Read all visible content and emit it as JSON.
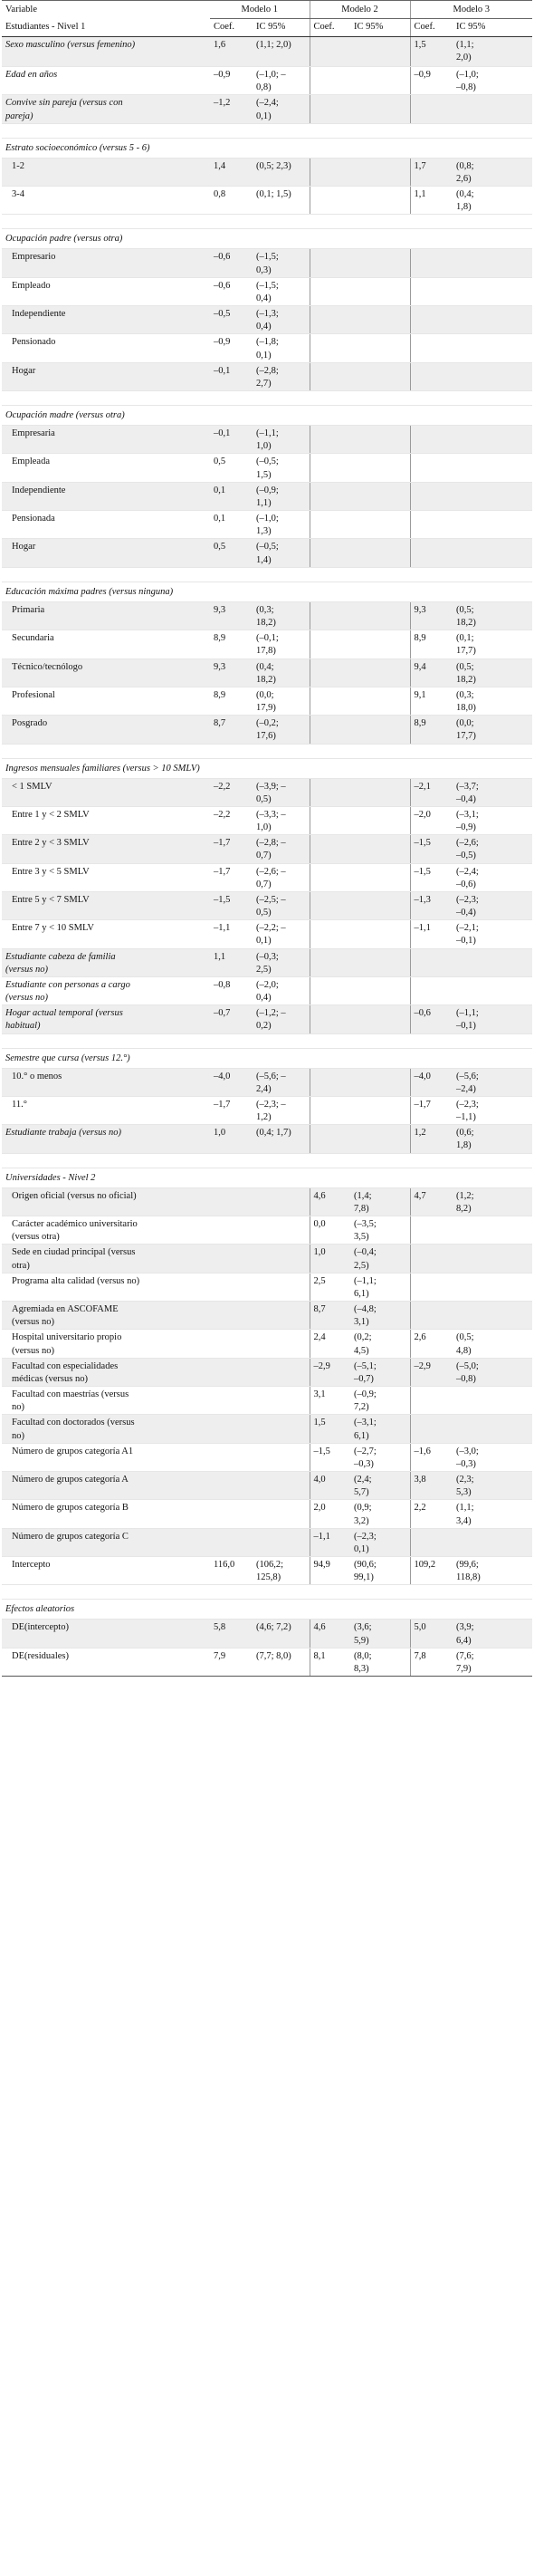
{
  "header": {
    "variable": "Variable",
    "level": "Estudiantes - Nivel 1",
    "models": [
      "Modelo 1",
      "Modelo 2",
      "Modelo 3"
    ],
    "coef": "Coef.",
    "ic": "IC 95%"
  },
  "rows": [
    {
      "t": "r",
      "label": "Sexo masculino (versus femenino)",
      "it": true,
      "h": 33,
      "b": true,
      "v": [
        "1,6",
        "(1,1; 2,0)",
        "",
        "",
        "1,5",
        "(1,1;\n2,0)"
      ]
    },
    {
      "t": "r",
      "label": "Edad en años",
      "it": true,
      "h": 28,
      "b": false,
      "v": [
        "–0,9",
        "(–1,0; –\n0,8)",
        "",
        "",
        "–0,9",
        "(–1,0;\n–0,8)"
      ]
    },
    {
      "t": "r",
      "label": "Convive sin pareja (versus con\npareja)",
      "it": true,
      "h": 30,
      "b": true,
      "v": [
        "–1,2",
        "(–2,4;\n0,1)",
        "",
        "",
        "",
        ""
      ]
    },
    {
      "t": "s"
    },
    {
      "t": "g",
      "label": "Estrato socioeconómico (versus 5 - 6)",
      "h": 22
    },
    {
      "t": "r",
      "label": "1-2",
      "ind": true,
      "h": 30,
      "b": true,
      "v": [
        "1,4",
        "(0,5; 2,3)",
        "",
        "",
        "1,7",
        "(0,8;\n2,6)"
      ]
    },
    {
      "t": "r",
      "label": "3-4",
      "ind": true,
      "h": 30,
      "b": false,
      "v": [
        "0,8",
        "(0,1; 1,5)",
        "",
        "",
        "1,1",
        "(0,4;\n1,8)"
      ]
    },
    {
      "t": "s"
    },
    {
      "t": "g",
      "label": "Ocupación padre (versus otra)",
      "h": 22
    },
    {
      "t": "r",
      "label": "Empresario",
      "ind": true,
      "h": 30,
      "b": true,
      "v": [
        "–0,6",
        "(–1,5;\n0,3)",
        "",
        "",
        "",
        ""
      ]
    },
    {
      "t": "r",
      "label": "Empleado",
      "ind": true,
      "h": 30,
      "b": false,
      "v": [
        "–0,6",
        "(–1,5;\n0,4)",
        "",
        "",
        "",
        ""
      ]
    },
    {
      "t": "r",
      "label": "Independiente",
      "ind": true,
      "h": 30,
      "b": true,
      "v": [
        "–0,5",
        "(–1,3;\n0,4)",
        "",
        "",
        "",
        ""
      ]
    },
    {
      "t": "r",
      "label": "Pensionado",
      "ind": true,
      "h": 30,
      "b": false,
      "v": [
        "–0,9",
        "(–1,8;\n0,1)",
        "",
        "",
        "",
        ""
      ]
    },
    {
      "t": "r",
      "label": "Hogar",
      "ind": true,
      "h": 30,
      "b": true,
      "v": [
        "–0,1",
        "(–2,8;\n2,7)",
        "",
        "",
        "",
        ""
      ]
    },
    {
      "t": "s"
    },
    {
      "t": "g",
      "label": "Ocupación madre (versus otra)",
      "h": 22
    },
    {
      "t": "r",
      "label": "Empresaria",
      "ind": true,
      "h": 30,
      "b": true,
      "v": [
        "–0,1",
        "(–1,1;\n1,0)",
        "",
        "",
        "",
        ""
      ]
    },
    {
      "t": "r",
      "label": "Empleada",
      "ind": true,
      "h": 30,
      "b": false,
      "v": [
        "0,5",
        "(–0,5;\n1,5)",
        "",
        "",
        "",
        ""
      ]
    },
    {
      "t": "r",
      "label": "Independiente",
      "ind": true,
      "h": 30,
      "b": true,
      "v": [
        "0,1",
        "(–0,9;\n1,1)",
        "",
        "",
        "",
        ""
      ]
    },
    {
      "t": "r",
      "label": "Pensionada",
      "ind": true,
      "h": 30,
      "b": false,
      "v": [
        "0,1",
        "(–1,0;\n1,3)",
        "",
        "",
        "",
        ""
      ]
    },
    {
      "t": "r",
      "label": "Hogar",
      "ind": true,
      "h": 30,
      "b": true,
      "v": [
        "0,5",
        "(–0,5;\n1,4)",
        "",
        "",
        "",
        ""
      ]
    },
    {
      "t": "s"
    },
    {
      "t": "g",
      "label": "Educación máxima padres (versus ninguna)",
      "h": 22
    },
    {
      "t": "r",
      "label": "Primaria",
      "ind": true,
      "h": 30,
      "b": true,
      "v": [
        "9,3",
        "(0,3;\n18,2)",
        "",
        "",
        "9,3",
        "(0,5;\n18,2)"
      ]
    },
    {
      "t": "r",
      "label": "Secundaria",
      "ind": true,
      "h": 30,
      "b": false,
      "v": [
        "8,9",
        "(–0,1;\n17,8)",
        "",
        "",
        "8,9",
        "(0,1;\n17,7)"
      ]
    },
    {
      "t": "r",
      "label": "Técnico/tecnólogo",
      "ind": true,
      "h": 30,
      "b": true,
      "v": [
        "9,3",
        "(0,4;\n18,2)",
        "",
        "",
        "9,4",
        "(0,5;\n18,2)"
      ]
    },
    {
      "t": "r",
      "label": "Profesional",
      "ind": true,
      "h": 30,
      "b": false,
      "v": [
        "8,9",
        "(0,0;\n17,9)",
        "",
        "",
        "9,1",
        "(0,3;\n18,0)"
      ]
    },
    {
      "t": "r",
      "label": "Posgrado",
      "ind": true,
      "h": 30,
      "b": true,
      "v": [
        "8,7",
        "(–0,2;\n17,6)",
        "",
        "",
        "8,9",
        "(0,0;\n17,7)"
      ]
    },
    {
      "t": "s"
    },
    {
      "t": "g",
      "label": "Ingresos mensuales familiares (versus > 10 SMLV)",
      "h": 22
    },
    {
      "t": "r",
      "label": "< 1 SMLV",
      "ind": true,
      "h": 30,
      "b": true,
      "v": [
        "–2,2",
        "(–3,9; –\n0,5)",
        "",
        "",
        "–2,1",
        "(–3,7;\n–0,4)"
      ]
    },
    {
      "t": "r",
      "label": "Entre 1 y < 2 SMLV",
      "ind": true,
      "h": 30,
      "b": false,
      "v": [
        "–2,2",
        "(–3,3; –\n1,0)",
        "",
        "",
        "–2,0",
        "(–3,1;\n–0,9)"
      ]
    },
    {
      "t": "r",
      "label": "Entre 2 y < 3 SMLV",
      "ind": true,
      "h": 30,
      "b": true,
      "v": [
        "–1,7",
        "(–2,8; –\n0,7)",
        "",
        "",
        "–1,5",
        "(–2,6;\n–0,5)"
      ]
    },
    {
      "t": "r",
      "label": "Entre 3 y < 5 SMLV",
      "ind": true,
      "h": 30,
      "b": false,
      "v": [
        "–1,7",
        "(–2,6; –\n0,7)",
        "",
        "",
        "–1,5",
        "(–2,4;\n–0,6)"
      ]
    },
    {
      "t": "r",
      "label": "Entre 5 y < 7 SMLV",
      "ind": true,
      "h": 30,
      "b": true,
      "v": [
        "–1,5",
        "(–2,5; –\n0,5)",
        "",
        "",
        "–1,3",
        "(–2,3;\n–0,4)"
      ]
    },
    {
      "t": "r",
      "label": "Entre 7 y < 10 SMLV",
      "ind": true,
      "h": 30,
      "b": false,
      "v": [
        "–1,1",
        "(–2,2; –\n0,1)",
        "",
        "",
        "–1,1",
        "(–2,1;\n–0,1)"
      ]
    },
    {
      "t": "r",
      "label": "Estudiante cabeza de familia\n(versus no)",
      "it": true,
      "h": 30,
      "b": true,
      "v": [
        "1,1",
        "(–0,3;\n2,5)",
        "",
        "",
        "",
        ""
      ]
    },
    {
      "t": "r",
      "label": "Estudiante con personas a cargo\n(versus no)",
      "it": true,
      "h": 30,
      "b": false,
      "v": [
        "–0,8",
        "(–2,0;\n0,4)",
        "",
        "",
        "",
        ""
      ]
    },
    {
      "t": "r",
      "label": "Hogar actual temporal (versus\nhabitual)",
      "it": true,
      "h": 30,
      "b": true,
      "v": [
        "–0,7",
        "(–1,2; –\n0,2)",
        "",
        "",
        "–0,6",
        "(–1,1;\n–0,1)"
      ]
    },
    {
      "t": "s"
    },
    {
      "t": "g",
      "label": "Semestre que cursa (versus 12.°)",
      "h": 22
    },
    {
      "t": "r",
      "label": "10.° o menos",
      "ind": true,
      "h": 30,
      "b": true,
      "v": [
        "–4,0",
        "(–5,6; –\n2,4)",
        "",
        "",
        "–4,0",
        "(–5,6;\n–2,4)"
      ]
    },
    {
      "t": "r",
      "label": "11.°",
      "ind": true,
      "h": 30,
      "b": false,
      "v": [
        "–1,7",
        "(–2,3; –\n1,2)",
        "",
        "",
        "–1,7",
        "(–2,3;\n–1,1)"
      ]
    },
    {
      "t": "r",
      "label": "Estudiante trabaja (versus no)",
      "it": true,
      "h": 30,
      "b": true,
      "v": [
        "1,0",
        "(0,4; 1,7)",
        "",
        "",
        "1,2",
        "(0,6;\n1,8)"
      ]
    },
    {
      "t": "s"
    },
    {
      "t": "g",
      "label": "Universidades - Nivel 2",
      "h": 22
    },
    {
      "t": "r",
      "label": "Origen oficial (versus no oficial)",
      "ind": true,
      "h": 30,
      "b": true,
      "v": [
        "",
        "",
        "4,6",
        "(1,4;\n7,8)",
        "4,7",
        "(1,2;\n8,2)"
      ]
    },
    {
      "t": "r",
      "label": "Carácter académico universitario\n(versus otra)",
      "ind": true,
      "h": 30,
      "b": false,
      "v": [
        "",
        "",
        "0,0",
        "(–3,5;\n3,5)",
        "",
        ""
      ]
    },
    {
      "t": "r",
      "label": "Sede en ciudad principal (versus\notra)",
      "ind": true,
      "h": 30,
      "b": true,
      "v": [
        "",
        "",
        "1,0",
        "(–0,4;\n2,5)",
        "",
        ""
      ]
    },
    {
      "t": "r",
      "label": "Programa alta calidad (versus no)",
      "ind": true,
      "h": 30,
      "b": false,
      "v": [
        "",
        "",
        "2,5",
        "(–1,1;\n6,1)",
        "",
        ""
      ]
    },
    {
      "t": "r",
      "label": "Agremiada en ASCOFAME\n(versus no)",
      "ind": true,
      "h": 30,
      "b": true,
      "v": [
        "",
        "",
        "8,7",
        "(–4,8;\n3,1)",
        "",
        ""
      ]
    },
    {
      "t": "r",
      "label": "Hospital universitario propio\n(versus no)",
      "ind": true,
      "h": 30,
      "b": false,
      "v": [
        "",
        "",
        "2,4",
        "(0,2;\n4,5)",
        "2,6",
        "(0,5;\n4,8)"
      ]
    },
    {
      "t": "r",
      "label": "Facultad con especialidades\nmédicas (versus no)",
      "ind": true,
      "h": 30,
      "b": true,
      "v": [
        "",
        "",
        "–2,9",
        "(–5,1;\n–0,7)",
        "–2,9",
        "(–5,0;\n–0,8)"
      ]
    },
    {
      "t": "r",
      "label": "Facultad con maestrías (versus\nno)",
      "ind": true,
      "h": 30,
      "b": false,
      "v": [
        "",
        "",
        "3,1",
        "(–0,9;\n7,2)",
        "",
        ""
      ]
    },
    {
      "t": "r",
      "label": "Facultad con doctorados (versus\nno)",
      "ind": true,
      "h": 30,
      "b": true,
      "v": [
        "",
        "",
        "1,5",
        "(–3,1;\n6,1)",
        "",
        ""
      ]
    },
    {
      "t": "r",
      "label": "Número de grupos categoría A1",
      "ind": true,
      "h": 30,
      "b": false,
      "v": [
        "",
        "",
        "–1,5",
        "(–2,7;\n–0,3)",
        "–1,6",
        "(–3,0;\n–0,3)"
      ]
    },
    {
      "t": "r",
      "label": "Número de grupos categoría A",
      "ind": true,
      "h": 30,
      "b": true,
      "v": [
        "",
        "",
        "4,0",
        "(2,4;\n5,7)",
        "3,8",
        "(2,3;\n5,3)"
      ]
    },
    {
      "t": "r",
      "label": "Número de grupos categoría B",
      "ind": true,
      "h": 30,
      "b": false,
      "v": [
        "",
        "",
        "2,0",
        "(0,9;\n3,2)",
        "2,2",
        "(1,1;\n3,4)"
      ]
    },
    {
      "t": "r",
      "label": "Número de grupos categoría C",
      "ind": true,
      "h": 30,
      "b": true,
      "v": [
        "",
        "",
        "–1,1",
        "(–2,3;\n0,1)",
        "",
        ""
      ]
    },
    {
      "t": "r",
      "label": "Intercepto",
      "ind": true,
      "h": 30,
      "b": false,
      "v": [
        "116,0",
        "(106,2;\n125,8)",
        "94,9",
        "(90,6;\n99,1)",
        "109,2",
        "(99,6;\n118,8)"
      ]
    },
    {
      "t": "s"
    },
    {
      "t": "g",
      "label": "Efectos aleatorios",
      "h": 22
    },
    {
      "t": "r",
      "label": "DE(intercepto)",
      "ind": true,
      "h": 30,
      "b": true,
      "v": [
        "5,8",
        "(4,6; 7,2)",
        "4,6",
        "(3,6;\n5,9)",
        "5,0",
        "(3,9;\n6,4)"
      ]
    },
    {
      "t": "r",
      "label": "DE(residuales)",
      "ind": true,
      "h": 30,
      "b": false,
      "last": true,
      "v": [
        "7,9",
        "(7,7; 8,0)",
        "8,1",
        "(8,0;\n8,3)",
        "7,8",
        "(7,6;\n7,9)"
      ]
    }
  ]
}
